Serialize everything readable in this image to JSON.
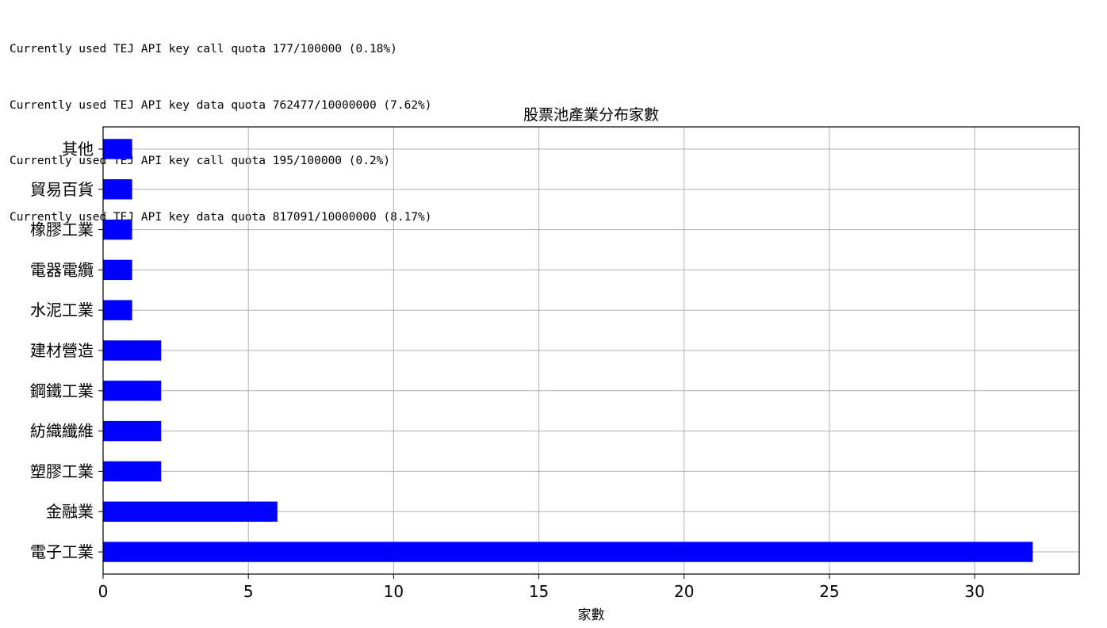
{
  "console": {
    "lines": [
      "Currently used TEJ API key call quota 177/100000 (0.18%)",
      "Currently used TEJ API key data quota 762477/10000000 (7.62%)",
      "Currently used TEJ API key call quota 195/100000 (0.2%)",
      "Currently used TEJ API key data quota 817091/10000000 (8.17%)"
    ]
  },
  "chart_data": {
    "type": "bar",
    "orientation": "horizontal",
    "title": "股票池產業分布家數",
    "xlabel": "家數",
    "ylabel": "",
    "categories": [
      "電子工業",
      "金融業",
      "塑膠工業",
      "紡織纖維",
      "鋼鐵工業",
      "建材營造",
      "水泥工業",
      "電器電纜",
      "橡膠工業",
      "貿易百貨",
      "其他"
    ],
    "values": [
      32,
      6,
      2,
      2,
      2,
      2,
      1,
      1,
      1,
      1,
      1
    ],
    "xlim": [
      0,
      33.6
    ],
    "xticks": [
      0,
      5,
      10,
      15,
      20,
      25,
      30
    ],
    "grid": true,
    "bar_color": "#0000ff"
  }
}
